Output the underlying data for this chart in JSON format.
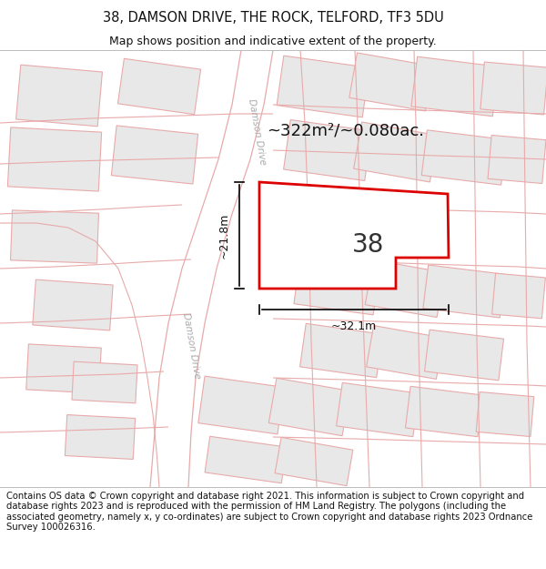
{
  "title": "38, DAMSON DRIVE, THE ROCK, TELFORD, TF3 5DU",
  "subtitle": "Map shows position and indicative extent of the property.",
  "area_text": "~322m²/~0.080ac.",
  "number_label": "38",
  "width_label": "~32.1m",
  "height_label": "~21.8m",
  "footer": "Contains OS data © Crown copyright and database right 2021. This information is subject to Crown copyright and database rights 2023 and is reproduced with the permission of HM Land Registry. The polygons (including the associated geometry, namely x, y co-ordinates) are subject to Crown copyright and database rights 2023 Ordnance Survey 100026316.",
  "bg_color": "#ffffff",
  "map_bg": "#f7f4f4",
  "polygon_fill": "#ffffff",
  "polygon_edge": "#dd0000",
  "parcel_fill": "#e8e8e8",
  "parcel_edge": "#e8aaaa",
  "road_outline": "#e8aaaa",
  "street_label_color": "#aaaaaa",
  "title_fontsize": 10.5,
  "subtitle_fontsize": 9,
  "footer_fontsize": 7.2,
  "number_fontsize": 20,
  "area_fontsize": 13,
  "dim_fontsize": 9
}
